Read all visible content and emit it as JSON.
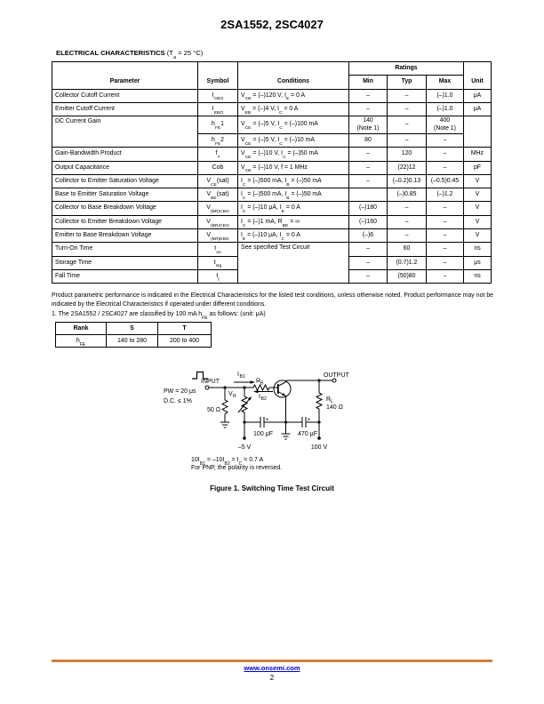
{
  "page": {
    "title": "2SA1552, 2SC4027",
    "footer_link": "www.onsemi.com",
    "page_number": "2"
  },
  "colors": {
    "footer_rule": "#d0813e",
    "link": "#0000cc"
  },
  "section": {
    "heading": "ELECTRICAL CHARACTERISTICS",
    "condition": "(T~a~ = 25 °C)"
  },
  "elec_table": {
    "headers": {
      "parameter": "Parameter",
      "symbol": "Symbol",
      "conditions": "Conditions",
      "ratings": "Ratings",
      "min": "Min",
      "typ": "Typ",
      "max": "Max",
      "unit": "Unit"
    },
    "rows": [
      {
        "cells": [
          {
            "t": "Collector Cutoff Current",
            "cls": "l"
          },
          {
            "t": "I~CBO~"
          },
          {
            "t": "V~CB~ = (–)120 V, I~E~ = 0 A",
            "cls": "l"
          },
          {
            "t": "–"
          },
          {
            "t": "–"
          },
          {
            "t": "(–)1.0"
          },
          {
            "t": "μA"
          }
        ]
      },
      {
        "cells": [
          {
            "t": "Emitter Cutoff Current",
            "cls": "l"
          },
          {
            "t": "I~EBO~"
          },
          {
            "t": "V~EB~ = (–)4 V, I~C~ = 0 A",
            "cls": "l"
          },
          {
            "t": "–"
          },
          {
            "t": "–"
          },
          {
            "t": "(–)1.0"
          },
          {
            "t": "μA"
          }
        ]
      },
      {
        "cells": [
          {
            "t": "DC Current Gain",
            "cls": "l vt",
            "rs": 2
          },
          {
            "t": "h~FE~1"
          },
          {
            "t": "V~CE~ = (–)5 V, I~C~ = (–)100 mA",
            "cls": "l"
          },
          {
            "t": "140\n(Note 1)"
          },
          {
            "t": "–"
          },
          {
            "t": "400\n(Note 1)"
          },
          {
            "t": "",
            "rs": 2
          }
        ]
      },
      {
        "cells": [
          {
            "t": "h~FE~2"
          },
          {
            "t": "V~CE~ = (–)5 V, I~C~ = (–)10 mA",
            "cls": "l"
          },
          {
            "t": "80"
          },
          {
            "t": "–"
          },
          {
            "t": "–"
          }
        ]
      },
      {
        "cells": [
          {
            "t": "Gain-Bandwidth Product",
            "cls": "l"
          },
          {
            "t": "f~T~"
          },
          {
            "t": "V~CE~ = (–)10 V, I~C~ = (–)50 mA",
            "cls": "l"
          },
          {
            "t": "–"
          },
          {
            "t": "120"
          },
          {
            "t": "–"
          },
          {
            "t": "MHz"
          }
        ]
      },
      {
        "cells": [
          {
            "t": "Output Capacitance",
            "cls": "l"
          },
          {
            "t": "Cob"
          },
          {
            "t": "V~CB~ = (–)10 V, f = 1 MHz",
            "cls": "l"
          },
          {
            "t": "–"
          },
          {
            "t": "(22)12"
          },
          {
            "t": "–"
          },
          {
            "t": "pF"
          }
        ]
      },
      {
        "cells": [
          {
            "t": "Collector to Emitter Saturation Voltage",
            "cls": "l"
          },
          {
            "t": "V~CE~(sat)"
          },
          {
            "t": "I~C~ = (–)500 mA, I~B~ = (–)50 mA",
            "cls": "l"
          },
          {
            "t": "–"
          },
          {
            "t": "(–0.2)0.13"
          },
          {
            "t": "(–0.5)0.45"
          },
          {
            "t": "V"
          }
        ]
      },
      {
        "cells": [
          {
            "t": "Base to Emitter Saturation Voltage",
            "cls": "l"
          },
          {
            "t": "V~BE~(sat)"
          },
          {
            "t": "I~C~ = (–)500 mA, I~B~ = (–)50 mA",
            "cls": "l"
          },
          {
            "t": ""
          },
          {
            "t": "(–)0.85"
          },
          {
            "t": "(–)1.2"
          },
          {
            "t": "V"
          }
        ]
      },
      {
        "cells": [
          {
            "t": "Collector to Base Breakdown Voltage",
            "cls": "l"
          },
          {
            "t": "V~(BR)CBO~"
          },
          {
            "t": "I~C~ = (–)10 μA, I~E~ = 0 A",
            "cls": "l"
          },
          {
            "t": "(–)180"
          },
          {
            "t": "–"
          },
          {
            "t": "–"
          },
          {
            "t": "V"
          }
        ]
      },
      {
        "cells": [
          {
            "t": "Collector to Emitter Breakdown Voltage",
            "cls": "l"
          },
          {
            "t": "V~(BR)CEO~"
          },
          {
            "t": "I~C~ = (–)1 mA, R~BE~ = ∞",
            "cls": "l"
          },
          {
            "t": "(–)160"
          },
          {
            "t": "–"
          },
          {
            "t": "–"
          },
          {
            "t": "V"
          }
        ]
      },
      {
        "cells": [
          {
            "t": "Emitter to Base Breakdown Voltage",
            "cls": "l"
          },
          {
            "t": "V~(BR)EBO~"
          },
          {
            "t": "I~E~ = (–)10 μA, I~C~ = 0 A",
            "cls": "l"
          },
          {
            "t": "(–)6"
          },
          {
            "t": "–"
          },
          {
            "t": "–"
          },
          {
            "t": "V"
          }
        ]
      },
      {
        "cells": [
          {
            "t": "Turn-On Time",
            "cls": "l"
          },
          {
            "t": "t~on~"
          },
          {
            "t": "See specified Test Circuit",
            "cls": "l vt",
            "rs": 3
          },
          {
            "t": "–"
          },
          {
            "t": "60"
          },
          {
            "t": "–"
          },
          {
            "t": "ns"
          }
        ]
      },
      {
        "cells": [
          {
            "t": "Storage Time",
            "cls": "l"
          },
          {
            "t": "t~stg~"
          },
          {
            "t": "–"
          },
          {
            "t": "(0.7)1.2"
          },
          {
            "t": "–"
          },
          {
            "t": "μs"
          }
        ]
      },
      {
        "cells": [
          {
            "t": "Fall Time",
            "cls": "l"
          },
          {
            "t": "t~f~"
          },
          {
            "t": "–"
          },
          {
            "t": "(50)80"
          },
          {
            "t": "–"
          },
          {
            "t": "ns"
          }
        ]
      }
    ]
  },
  "disclaimer": "Product parametric performance is indicated in the Electrical Characteristics for the listed test conditions, unless otherwise noted. Product performance may not be indicated by the Electrical Characteristics if operated under different conditions.",
  "note1": "1.  The 2SA1552 / 2SC4027 are classified by 100 mA h~FE~ as follows: (unit: μA)",
  "rank_table": {
    "headers": [
      "Rank",
      "S",
      "T"
    ],
    "row": [
      "h~FE~",
      "140 to 280",
      "200 to 400"
    ]
  },
  "circuit": {
    "labels": {
      "input": "INPUT",
      "output": "OUTPUT",
      "pw": "PW = 20 μs",
      "dc": "D.C. ≤ 1%",
      "r_source": "50 Ω",
      "vr": {
        "base": "V",
        "sub": "R"
      },
      "ib1": {
        "base": "I",
        "sub": "B1"
      },
      "rb": {
        "base": "R",
        "sub": "B"
      },
      "ib2": {
        "base": "I",
        "sub": "B2"
      },
      "rl": {
        "base": "R",
        "sub": "L"
      },
      "rl_value": "140 Ω",
      "c1": "100 μF",
      "c2": "470 μF",
      "v_neg": "–5 V",
      "v_pos": "100 V",
      "plus": "+"
    },
    "notes": [
      "10I~B1~ = –10I~B2~ = I~C~ = 0.7 A",
      "For PNP, the polarity is reversed."
    ],
    "caption": "Figure 1. Switching Time Test Circuit"
  }
}
